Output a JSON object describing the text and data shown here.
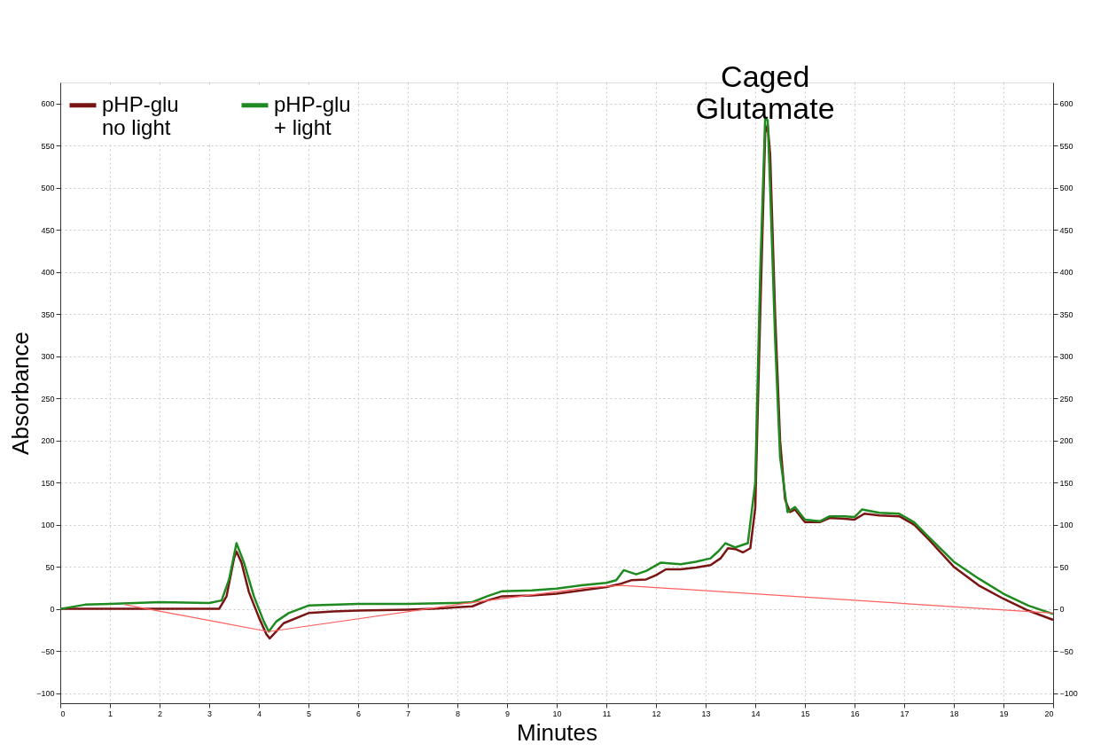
{
  "chart_data": {
    "type": "line",
    "xlabel": "Minutes",
    "ylabel": "Absorbance",
    "xlim": [
      0,
      20
    ],
    "xticks": [
      0,
      1,
      2,
      3,
      4,
      5,
      6,
      7,
      8,
      9,
      10,
      11,
      12,
      13,
      14,
      15,
      16,
      17,
      18,
      19,
      20
    ],
    "ylim": [
      -112,
      625
    ],
    "yticks": [
      -100,
      -50,
      0,
      50,
      100,
      150,
      200,
      250,
      300,
      350,
      400,
      450,
      500,
      550,
      600
    ],
    "y2lim": [
      -112,
      625
    ],
    "y2ticks": [
      -100,
      -50,
      0,
      50,
      100,
      150,
      200,
      250,
      300,
      350,
      400,
      450,
      500,
      550,
      600
    ],
    "grid": true,
    "legend": "top left",
    "marker": "none",
    "line_style": "solid",
    "annotations": [
      {
        "text": "Caged Glutamate",
        "x": 14.2,
        "y": 583
      }
    ],
    "series": [
      {
        "name": "pHP-glu no light",
        "color": "#7a1515",
        "x": [
          0,
          1,
          2,
          3,
          3.2,
          3.35,
          3.5,
          3.55,
          3.65,
          3.8,
          4.0,
          4.15,
          4.22,
          4.3,
          4.5,
          5,
          5.5,
          6,
          7,
          7.5,
          8,
          8.3,
          8.6,
          8.9,
          9.5,
          10,
          10.5,
          11,
          11.3,
          11.5,
          11.8,
          12,
          12.2,
          12.5,
          12.8,
          13.1,
          13.3,
          13.45,
          13.6,
          13.75,
          13.9,
          14.0,
          14.1,
          14.2,
          14.25,
          14.3,
          14.4,
          14.5,
          14.6,
          14.7,
          14.8,
          15.0,
          15.3,
          15.5,
          15.8,
          16.0,
          16.2,
          16.5,
          16.9,
          17.2,
          17.5,
          18,
          18.5,
          19,
          19.5,
          20
        ],
        "values": [
          0,
          0,
          0,
          0,
          0,
          15,
          60,
          68,
          55,
          20,
          -10,
          -30,
          -35,
          -30,
          -17,
          -5,
          -3,
          -2,
          -1,
          0,
          2,
          3,
          10,
          15,
          16,
          18,
          22,
          26,
          30,
          34,
          35,
          40,
          47,
          47,
          49,
          52,
          60,
          72,
          71,
          67,
          72,
          120,
          350,
          565,
          575,
          540,
          350,
          200,
          130,
          115,
          118,
          103,
          103,
          108,
          107,
          106,
          113,
          111,
          110,
          100,
          82,
          50,
          28,
          12,
          -2,
          -13
        ]
      },
      {
        "name": "pHP-glu + light",
        "color": "#1f8a1f",
        "x": [
          0,
          0.5,
          1,
          2,
          3,
          3.25,
          3.4,
          3.55,
          3.7,
          3.9,
          4.1,
          4.2,
          4.35,
          4.6,
          5,
          6,
          7,
          8,
          8.3,
          8.6,
          8.9,
          9.5,
          10,
          10.5,
          11,
          11.2,
          11.35,
          11.6,
          11.8,
          12.1,
          12.5,
          12.8,
          13.1,
          13.25,
          13.4,
          13.6,
          13.85,
          14.0,
          14.1,
          14.2,
          14.25,
          14.3,
          14.4,
          14.5,
          14.65,
          14.8,
          15.0,
          15.3,
          15.5,
          15.8,
          16.0,
          16.15,
          16.5,
          16.9,
          17.2,
          17.5,
          18,
          18.5,
          19,
          19.5,
          20
        ],
        "values": [
          0,
          5,
          6,
          8,
          7,
          10,
          35,
          78,
          55,
          15,
          -15,
          -27,
          -15,
          -5,
          4,
          6,
          6,
          7,
          8,
          15,
          21,
          22,
          24,
          28,
          31,
          34,
          46,
          41,
          45,
          55,
          53,
          56,
          60,
          68,
          78,
          73,
          78,
          150,
          400,
          583,
          580,
          500,
          320,
          180,
          115,
          121,
          106,
          104,
          110,
          110,
          109,
          118,
          114,
          113,
          103,
          85,
          56,
          36,
          18,
          4,
          -6
        ]
      },
      {
        "color": "#ff6060",
        "x": [
          1.3,
          4.2,
          8.1,
          10.6,
          11.3,
          20
        ],
        "values": [
          5,
          -27,
          6,
          25,
          28,
          -5
        ]
      }
    ]
  }
}
